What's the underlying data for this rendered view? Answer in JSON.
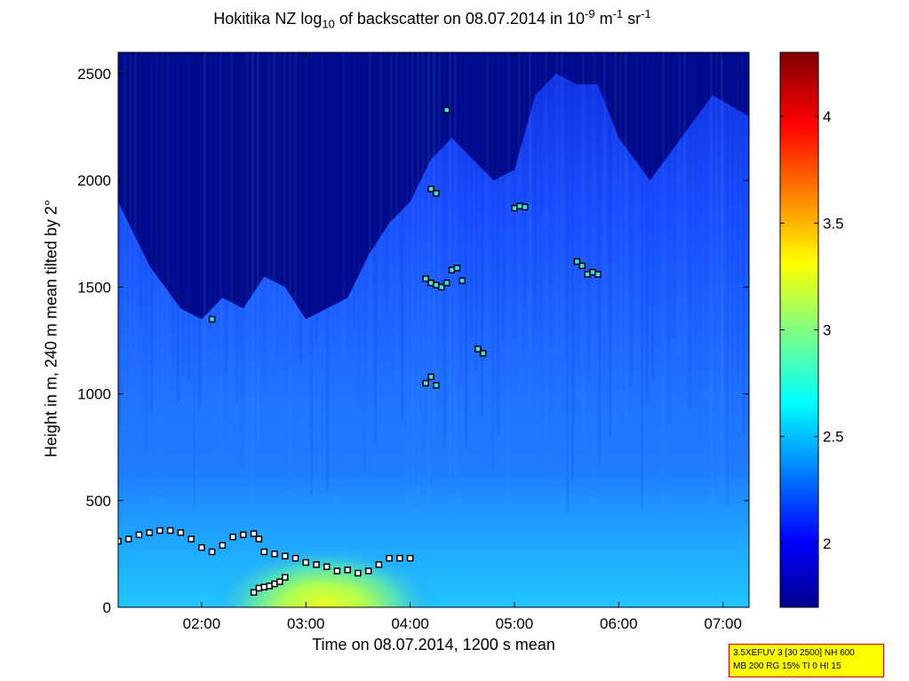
{
  "title": {
    "prefix": "Hokitika NZ log",
    "sub": "10",
    "middle": " of backscatter on 08.07.2014 in 10",
    "sup1": "-9",
    "unit1": " m",
    "sup2": "-1",
    "unit2": " sr",
    "sup3": "-1"
  },
  "ylabel": "Height in m, 240 m mean tilted by 2°",
  "xlabel": "Time on 08.07.2014, 1200 s mean",
  "info": {
    "line1": "3.5XEFUV 3 [30 2500] NH 600",
    "line2": "MB 200 RG 15% TI 0 HI 15"
  },
  "chart_data": {
    "type": "heatmap",
    "x_axis": {
      "range_hours": [
        1.2,
        7.25
      ],
      "tick_labels": [
        "02:00",
        "03:00",
        "04:00",
        "05:00",
        "06:00",
        "07:00"
      ],
      "tick_values_hours": [
        2,
        3,
        4,
        5,
        6,
        7
      ]
    },
    "y_axis": {
      "range_m": [
        0,
        2600
      ],
      "tick_labels": [
        "0",
        "500",
        "1000",
        "1500",
        "2000",
        "2500"
      ],
      "tick_values": [
        0,
        500,
        1000,
        1500,
        2000,
        2500
      ]
    },
    "colorbar": {
      "range": [
        1.7,
        4.3
      ],
      "tick_labels": [
        "2",
        "2.5",
        "3",
        "3.5",
        "4"
      ],
      "tick_values": [
        2,
        2.5,
        3,
        3.5,
        4
      ],
      "colormap": "jet"
    },
    "cloud_boundary_hours": [
      1.2,
      1.5,
      1.8,
      2.0,
      2.2,
      2.4,
      2.6,
      2.8,
      3.0,
      3.2,
      3.4,
      3.6,
      3.8,
      4.0,
      4.2,
      4.4,
      4.6,
      4.8,
      5.0,
      5.2,
      5.4,
      5.6,
      5.8,
      6.0,
      6.3,
      6.6,
      6.9,
      7.25
    ],
    "cloud_boundary_m": [
      1900,
      1600,
      1400,
      1350,
      1450,
      1400,
      1550,
      1500,
      1350,
      1400,
      1450,
      1650,
      1800,
      1900,
      2100,
      2200,
      2100,
      2000,
      2050,
      2400,
      2500,
      2450,
      2450,
      2200,
      2000,
      2200,
      2400,
      2300
    ],
    "series": [
      {
        "x_hours": [
          1.2,
          1.3,
          1.4,
          1.5,
          1.6,
          1.7,
          1.8,
          1.9,
          2.0,
          2.1,
          2.2,
          2.3,
          2.4,
          2.5,
          2.55,
          2.6,
          2.7,
          2.8,
          2.9,
          3.0,
          3.1,
          3.2,
          3.3,
          3.4,
          3.5,
          3.6,
          3.7,
          3.8,
          3.9,
          4.0
        ],
        "y_m": [
          310,
          320,
          340,
          350,
          360,
          360,
          350,
          320,
          280,
          260,
          290,
          330,
          340,
          345,
          320,
          260,
          250,
          240,
          230,
          210,
          200,
          190,
          170,
          175,
          160,
          170,
          200,
          230,
          230,
          230
        ]
      },
      {
        "x_hours": [
          2.5,
          2.55,
          2.6,
          2.65,
          2.7,
          2.75,
          2.8
        ],
        "y_m": [
          70,
          90,
          95,
          100,
          110,
          120,
          140
        ]
      },
      {
        "x_hours": [
          2.1,
          4.15,
          4.2,
          4.25,
          4.3,
          4.35,
          4.4,
          4.45,
          4.5,
          4.15,
          4.2,
          4.25,
          4.2,
          4.25,
          4.65,
          4.7,
          5.0,
          5.05,
          5.1,
          5.6,
          5.65,
          5.7,
          5.75,
          5.8,
          4.35
        ],
        "y_m": [
          1350,
          1540,
          1520,
          1510,
          1500,
          1520,
          1580,
          1590,
          1530,
          1050,
          1080,
          1040,
          1960,
          1940,
          1210,
          1190,
          1870,
          1880,
          1875,
          1620,
          1600,
          1560,
          1570,
          1560,
          2330
        ]
      }
    ]
  }
}
